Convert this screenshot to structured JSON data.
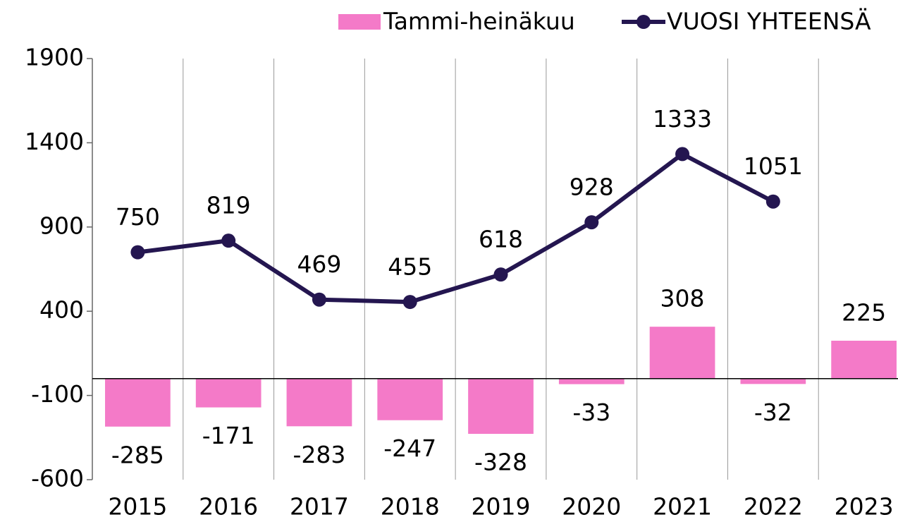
{
  "chart_data": {
    "type": "bar",
    "categories": [
      "2015",
      "2016",
      "2017",
      "2018",
      "2019",
      "2020",
      "2021",
      "2022",
      "2023"
    ],
    "series": [
      {
        "name": "Tammi-heinäkuu",
        "type": "bar",
        "color": "#f47ac8",
        "values": [
          -285,
          -171,
          -283,
          -247,
          -328,
          -33,
          308,
          -32,
          225
        ]
      },
      {
        "name": "VUOSI YHTEENSÄ",
        "type": "line",
        "color": "#241650",
        "values": [
          750,
          819,
          469,
          455,
          618,
          928,
          1333,
          1051,
          null
        ]
      }
    ],
    "ylim": [
      -600,
      1900
    ],
    "yticks": [
      -600,
      -100,
      400,
      900,
      1400,
      1900
    ],
    "legend": "top-right"
  }
}
